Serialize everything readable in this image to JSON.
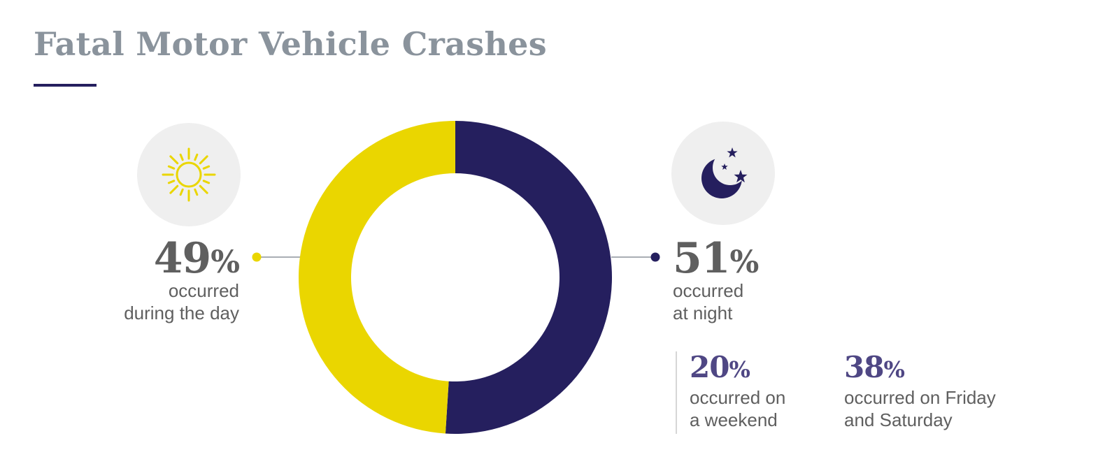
{
  "title": "Fatal Motor Vehicle Crashes",
  "colors": {
    "day": "#ead600",
    "night": "#251f5e",
    "title": "#8a939c",
    "text": "#5f5f5f",
    "stat": "#4f4784",
    "icon_bg": "#efefef"
  },
  "icons": {
    "day": "sun-icon",
    "night": "moon-stars-icon"
  },
  "chart_data": {
    "type": "pie",
    "variant": "donut",
    "slices": [
      {
        "label": "occurred during the day",
        "value": 49,
        "color": "#ead600"
      },
      {
        "label": "occurred at night",
        "value": 51,
        "color": "#251f5e"
      }
    ]
  },
  "callouts": {
    "day": {
      "value": "49",
      "unit": "%",
      "line1": "occurred",
      "line2": "during the day"
    },
    "night": {
      "value": "51",
      "unit": "%",
      "line1": "occurred",
      "line2": "at night"
    }
  },
  "sub_stats": [
    {
      "value": "20",
      "unit": "%",
      "line1": "occurred on",
      "line2": "a weekend"
    },
    {
      "value": "38",
      "unit": "%",
      "line1": "occurred on Friday",
      "line2": "and Saturday"
    }
  ]
}
